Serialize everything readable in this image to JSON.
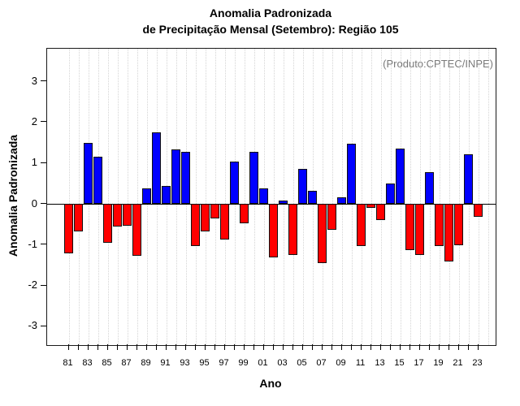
{
  "title": {
    "line1": "Anomalia Padronizada",
    "line2": "de Precipitação Mensal (Setembro): Região 105"
  },
  "annotation": "(Produto:CPTEC/INPE)",
  "chart_data": {
    "type": "bar",
    "title": "Anomalia Padronizada de Precipitação Mensal (Setembro): Região 105",
    "xlabel": "Ano",
    "ylabel": "Anomalia Padronizada",
    "ylim": [
      -3.5,
      3.8
    ],
    "yticks": [
      -3,
      -2,
      -1,
      0,
      1,
      2,
      3
    ],
    "grid": "vertical-dotted",
    "legend": "none",
    "x_tick_labels_shown": [
      "81",
      "83",
      "85",
      "87",
      "89",
      "91",
      "93",
      "95",
      "97",
      "99",
      "01",
      "03",
      "05",
      "07",
      "09",
      "11",
      "13",
      "15",
      "17",
      "19",
      "21",
      "23"
    ],
    "categories": [
      "81",
      "82",
      "83",
      "84",
      "85",
      "86",
      "87",
      "88",
      "89",
      "90",
      "91",
      "92",
      "93",
      "94",
      "95",
      "96",
      "97",
      "98",
      "99",
      "00",
      "01",
      "02",
      "03",
      "04",
      "05",
      "06",
      "07",
      "08",
      "09",
      "10",
      "11",
      "12",
      "13",
      "14",
      "15",
      "16",
      "17",
      "18",
      "19",
      "20",
      "21",
      "22",
      "23"
    ],
    "values": [
      -1.22,
      -0.67,
      1.5,
      1.15,
      -0.95,
      -0.56,
      -0.53,
      -1.27,
      0.37,
      1.75,
      0.43,
      1.33,
      1.27,
      -1.03,
      -0.68,
      -0.36,
      -0.87,
      1.04,
      -0.48,
      1.27,
      0.38,
      -1.32,
      0.08,
      -1.25,
      0.85,
      0.32,
      -1.46,
      -0.64,
      0.15,
      1.48,
      -1.04,
      -0.1,
      -0.39,
      0.5,
      1.36,
      -1.13,
      -1.25,
      0.78,
      -1.03,
      -1.41,
      -1.01,
      1.21,
      -0.31
    ],
    "colors": {
      "positive": "#0000ff",
      "negative": "#ff0000",
      "grid": "#d4d4d4",
      "annotation": "#7a7a7a",
      "axis": "#1a1a1a"
    }
  }
}
